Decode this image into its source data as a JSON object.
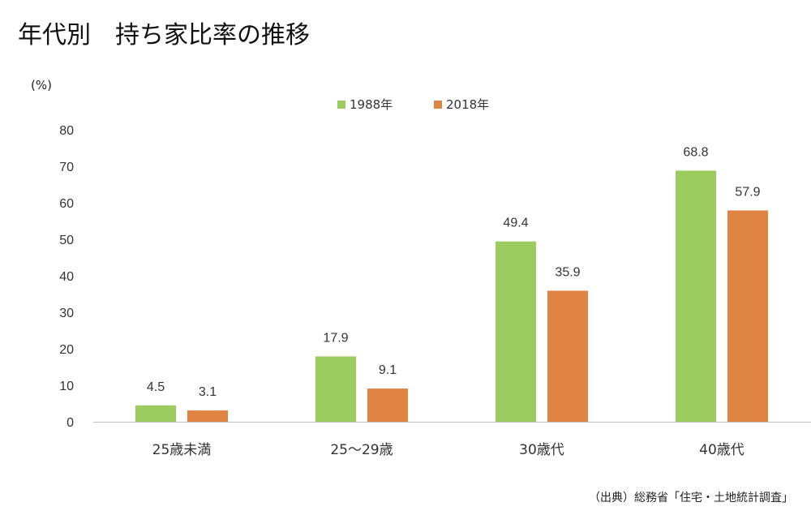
{
  "title": "年代別　持ち家比率の推移",
  "source": "（出典）総務省「住宅・土地統計調査」",
  "colors": {
    "series_1988": "#9ccc5f",
    "series_2018": "#e08444",
    "axis": "#bfbfbf"
  },
  "chart_data": {
    "type": "bar",
    "categories": [
      "25歳未満",
      "25～29歳",
      "30歳代",
      "40歳代"
    ],
    "series": [
      {
        "name": "1988年",
        "values": [
          4.5,
          17.9,
          49.4,
          68.8
        ]
      },
      {
        "name": "2018年",
        "values": [
          3.1,
          9.1,
          35.9,
          57.9
        ]
      }
    ],
    "ylabel": "(%)",
    "ylim": [
      0,
      80
    ],
    "yticks": [
      0,
      10,
      20,
      30,
      40,
      50,
      60,
      70,
      80
    ],
    "grid": false,
    "legend_position": "top-center",
    "data_labels": true
  }
}
